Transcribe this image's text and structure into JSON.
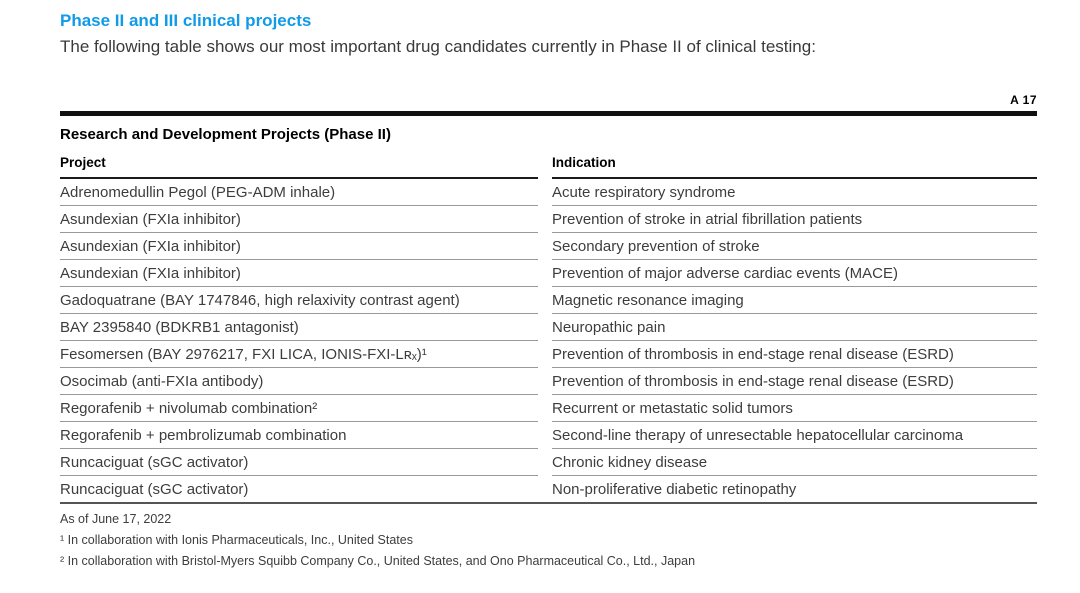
{
  "page": {
    "heading": "Phase II and III clinical projects",
    "intro": "The following table shows our most important drug candidates currently in Phase II of clinical testing:",
    "page_marker": "A 17"
  },
  "table": {
    "title": "Research and Development Projects (Phase II)",
    "columns": [
      "Project",
      "Indication"
    ],
    "rows": [
      {
        "project": "Adrenomedullin Pegol (PEG-ADM inhale)",
        "indication": "Acute respiratory syndrome"
      },
      {
        "project": "Asundexian (FXIa inhibitor)",
        "indication": "Prevention of stroke in atrial fibrillation patients"
      },
      {
        "project": "Asundexian (FXIa inhibitor)",
        "indication": "Secondary prevention of stroke"
      },
      {
        "project": "Asundexian (FXIa inhibitor)",
        "indication": "Prevention of major adverse cardiac events (MACE)"
      },
      {
        "project": "Gadoquatrane (BAY 1747846, high relaxivity contrast agent)",
        "indication": "Magnetic resonance imaging"
      },
      {
        "project": "BAY 2395840 (BDKRB1 antagonist)",
        "indication": "Neuropathic pain"
      },
      {
        "project": "Fesomersen (BAY 2976217, FXI LICA, IONIS-FXI-Lʀₓ)¹",
        "indication": "Prevention of thrombosis in end-stage renal disease (ESRD)"
      },
      {
        "project": "Osocimab (anti-FXIa antibody)",
        "indication": "Prevention of thrombosis in end-stage renal disease (ESRD)"
      },
      {
        "project": "Regorafenib + nivolumab combination²",
        "indication": "Recurrent or metastatic solid tumors"
      },
      {
        "project": "Regorafenib + pembrolizumab combination",
        "indication": "Second-line therapy of unresectable hepatocellular carcinoma"
      },
      {
        "project": "Runcaciguat (sGC activator)",
        "indication": "Chronic kidney disease"
      },
      {
        "project": "Runcaciguat (sGC activator)",
        "indication": "Non-proliferative diabetic retinopathy"
      }
    ],
    "as_of": "As of June 17, 2022",
    "footnotes": [
      "¹ In collaboration with Ionis Pharmaceuticals, Inc., United States",
      "² In collaboration with Bristol-Myers Squibb Company Co., United States, and Ono Pharmaceutical Co., Ltd., Japan"
    ]
  },
  "colors": {
    "accent_blue": "#0f9be8",
    "rule_black": "#111111",
    "row_separator": "#999999"
  }
}
